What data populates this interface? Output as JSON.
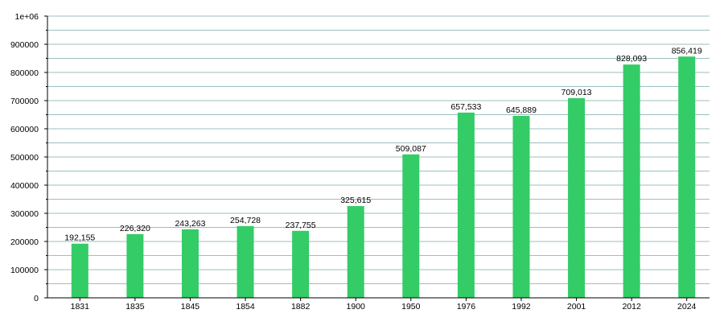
{
  "chart_data": {
    "type": "bar",
    "title": "",
    "xlabel": "",
    "ylabel": "",
    "categories": [
      "1831",
      "1835",
      "1845",
      "1854",
      "1882",
      "1900",
      "1950",
      "1976",
      "1992",
      "2001",
      "2012",
      "2024"
    ],
    "values": [
      192155,
      226320,
      243263,
      254728,
      237755,
      325615,
      509087,
      657533,
      645889,
      709013,
      828093,
      856419
    ],
    "data_labels": [
      "192,155",
      "226,320",
      "243,263",
      "254,728",
      "237,755",
      "325,615",
      "509,087",
      "657,533",
      "645,889",
      "709,013",
      "828,093",
      "856,419"
    ],
    "ylim": [
      0,
      1000000
    ],
    "yticks": [
      0,
      100000,
      200000,
      300000,
      400000,
      500000,
      600000,
      700000,
      800000,
      900000,
      1000000
    ],
    "ytick_labels": [
      "0",
      "100000",
      "200000",
      "300000",
      "400000",
      "500000",
      "600000",
      "700000",
      "800000",
      "900000",
      "1e+06"
    ],
    "grid": true,
    "colors": {
      "bar": "#33cc66",
      "grid": "#9bbfbf",
      "axis": "#000000",
      "text": "#000000"
    }
  }
}
